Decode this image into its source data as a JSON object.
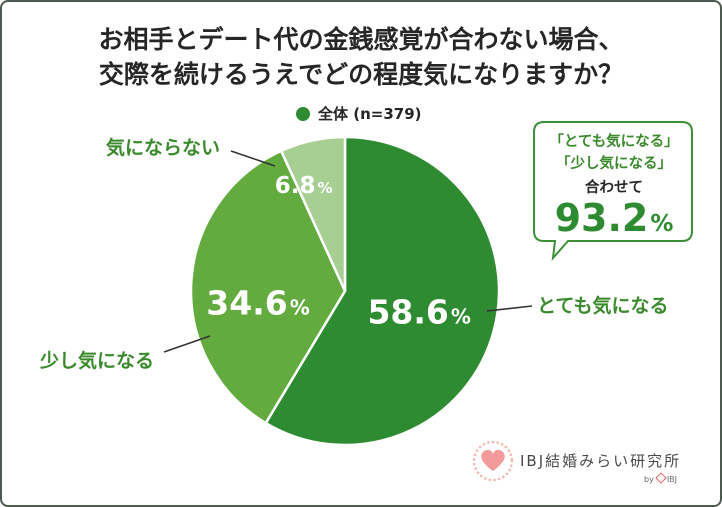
{
  "colors": {
    "accent": "#2f8b31",
    "label_text": "#3a8a2c",
    "title_text": "#262626",
    "callout_border": "#3d9038",
    "logo_heart": "#f39b9b"
  },
  "chart_data": {
    "type": "pie",
    "title": [
      "お相手とデート代の金銭感覚が合わない場合、",
      "交際を続けるうえでどの程度気になりますか？"
    ],
    "legend": {
      "label": "全体 (n=379)",
      "position": "top-center"
    },
    "unit": "%",
    "slices": [
      {
        "label": "とても気になる",
        "value": 58.6,
        "color": "#2f8b31"
      },
      {
        "label": "少し気になる",
        "value": 34.6,
        "color": "#63ab3f"
      },
      {
        "label": "気にならない",
        "value": 6.8,
        "color": "#a8cf93"
      }
    ]
  },
  "callout": {
    "line1": "「とても気になる」",
    "line2": "「少し気になる」",
    "line3": "合わせて",
    "total_value": "93.2",
    "total_unit": "%"
  },
  "logo": {
    "name": "IBJ結婚みらい研究所",
    "by": "by",
    "brand": "IBJ"
  }
}
